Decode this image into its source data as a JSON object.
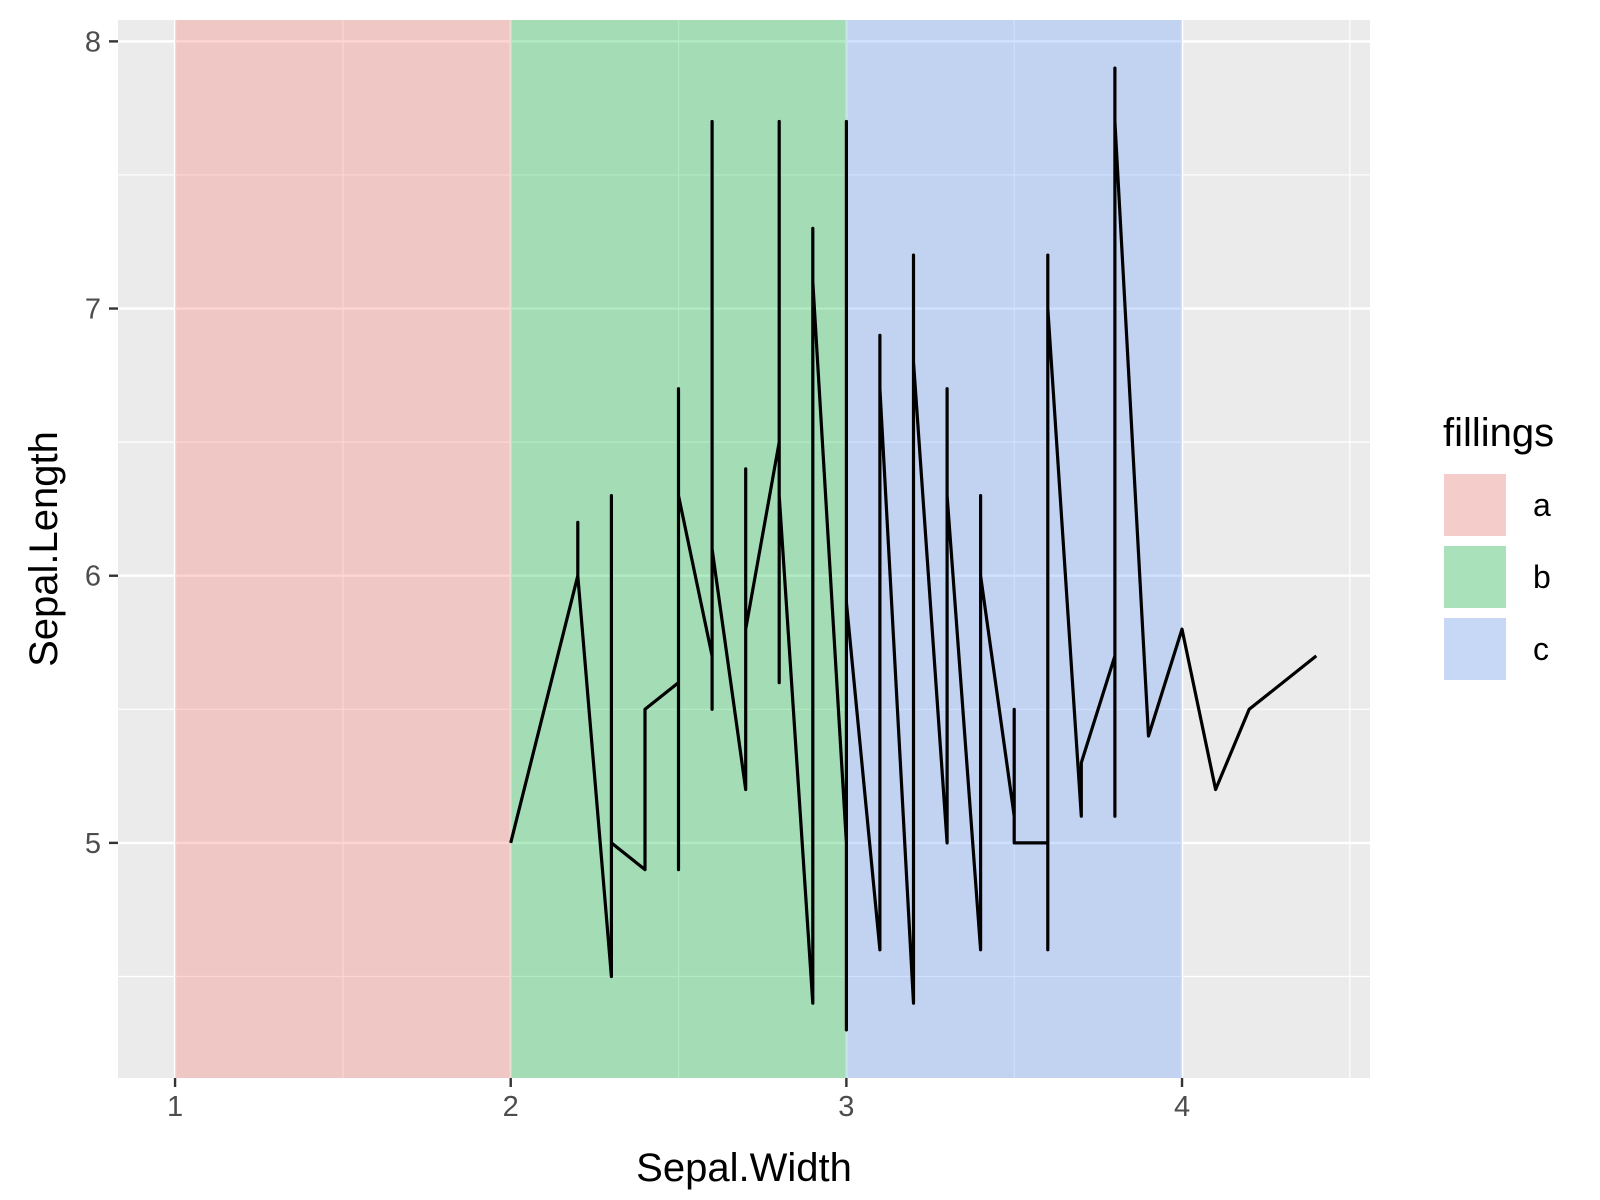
{
  "chart_data": {
    "type": "line",
    "xlabel": "Sepal.Width",
    "ylabel": "Sepal.Length",
    "xlim": [
      0.83,
      4.56
    ],
    "ylim": [
      4.12,
      8.08
    ],
    "x_ticks": [
      1,
      2,
      3,
      4
    ],
    "y_ticks": [
      5,
      6,
      7,
      8
    ],
    "x_minor": [
      1.5,
      2.5,
      3.5,
      4.5
    ],
    "y_minor": [
      4.5,
      5.5,
      6.5,
      7.5
    ],
    "grid": true,
    "legend": {
      "title": "fillings",
      "position": "right",
      "items": [
        {
          "label": "a",
          "color": "#F8766D"
        },
        {
          "label": "b",
          "color": "#00BA38"
        },
        {
          "label": "c",
          "color": "#619CFF"
        }
      ]
    },
    "bands": [
      {
        "label": "a",
        "xmin": 1,
        "xmax": 2,
        "color": "#F8766D",
        "alpha": 0.3
      },
      {
        "label": "b",
        "xmin": 2,
        "xmax": 3,
        "color": "#00BA38",
        "alpha": 0.3
      },
      {
        "label": "c",
        "xmin": 3,
        "xmax": 4,
        "color": "#619CFF",
        "alpha": 0.3
      }
    ],
    "series": [
      {
        "color": "#000000",
        "points": [
          [
            2.0,
            5.0
          ],
          [
            2.2,
            6.0
          ],
          [
            2.2,
            6.2
          ],
          [
            2.2,
            6.0
          ],
          [
            2.3,
            4.5
          ],
          [
            2.3,
            6.3
          ],
          [
            2.3,
            5.0
          ],
          [
            2.4,
            4.9
          ],
          [
            2.4,
            5.5
          ],
          [
            2.5,
            5.6
          ],
          [
            2.5,
            4.9
          ],
          [
            2.5,
            6.7
          ],
          [
            2.5,
            6.3
          ],
          [
            2.6,
            5.7
          ],
          [
            2.6,
            7.7
          ],
          [
            2.6,
            5.5
          ],
          [
            2.6,
            6.1
          ],
          [
            2.7,
            5.2
          ],
          [
            2.7,
            6.4
          ],
          [
            2.7,
            5.8
          ],
          [
            2.8,
            6.5
          ],
          [
            2.8,
            7.7
          ],
          [
            2.8,
            5.6
          ],
          [
            2.8,
            6.3
          ],
          [
            2.9,
            4.4
          ],
          [
            2.9,
            7.3
          ],
          [
            2.9,
            7.1
          ],
          [
            3.0,
            5.0
          ],
          [
            3.0,
            7.7
          ],
          [
            3.0,
            4.3
          ],
          [
            3.0,
            5.9
          ],
          [
            3.1,
            4.6
          ],
          [
            3.1,
            6.9
          ],
          [
            3.1,
            6.7
          ],
          [
            3.2,
            4.4
          ],
          [
            3.2,
            7.2
          ],
          [
            3.2,
            6.8
          ],
          [
            3.3,
            5.0
          ],
          [
            3.3,
            6.7
          ],
          [
            3.3,
            6.3
          ],
          [
            3.4,
            4.6
          ],
          [
            3.4,
            6.3
          ],
          [
            3.4,
            6.0
          ],
          [
            3.5,
            5.1
          ],
          [
            3.5,
            5.5
          ],
          [
            3.5,
            5.0
          ],
          [
            3.6,
            5.0
          ],
          [
            3.6,
            4.6
          ],
          [
            3.6,
            7.2
          ],
          [
            3.6,
            7.0
          ],
          [
            3.7,
            5.1
          ],
          [
            3.7,
            5.3
          ],
          [
            3.8,
            5.7
          ],
          [
            3.8,
            5.1
          ],
          [
            3.8,
            7.9
          ],
          [
            3.8,
            7.7
          ],
          [
            3.9,
            5.4
          ],
          [
            4.0,
            5.8
          ],
          [
            4.1,
            5.2
          ],
          [
            4.2,
            5.5
          ],
          [
            4.4,
            5.7
          ]
        ]
      }
    ]
  }
}
